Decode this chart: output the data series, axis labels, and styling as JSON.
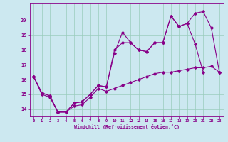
{
  "xlabel": "Windchill (Refroidissement éolien,°C)",
  "bg_color": "#cce8f0",
  "line_color": "#880088",
  "grid_color": "#99ccbb",
  "xlim": [
    -0.5,
    23.5
  ],
  "ylim": [
    13.5,
    21.2
  ],
  "xticks": [
    0,
    1,
    2,
    3,
    4,
    5,
    6,
    7,
    8,
    9,
    10,
    11,
    12,
    13,
    14,
    15,
    16,
    17,
    18,
    19,
    20,
    21,
    22,
    23
  ],
  "yticks": [
    14,
    15,
    16,
    17,
    18,
    19,
    20
  ],
  "series": [
    {
      "x": [
        0,
        1,
        2,
        3,
        4,
        5,
        6,
        7,
        8,
        9,
        10,
        11,
        12,
        13,
        14,
        15,
        16,
        17,
        18,
        19,
        20,
        21,
        22,
        23
      ],
      "y": [
        16.2,
        15.1,
        14.9,
        13.8,
        13.8,
        14.4,
        14.5,
        15.0,
        15.6,
        15.5,
        17.8,
        19.2,
        18.5,
        18.0,
        17.9,
        18.5,
        18.5,
        20.3,
        19.6,
        19.8,
        18.4,
        16.5,
        null,
        null
      ]
    },
    {
      "x": [
        0,
        1,
        2,
        3,
        4,
        5,
        6,
        7,
        8,
        9,
        10,
        11,
        12,
        13,
        14,
        15,
        16,
        17,
        18,
        19,
        20,
        21,
        22,
        23
      ],
      "y": [
        16.2,
        15.1,
        14.9,
        13.8,
        13.8,
        14.4,
        14.5,
        15.0,
        15.6,
        15.5,
        18.0,
        18.5,
        18.5,
        18.0,
        17.9,
        18.5,
        18.5,
        20.3,
        19.6,
        19.8,
        20.5,
        20.6,
        19.5,
        16.5
      ]
    },
    {
      "x": [
        0,
        1,
        2,
        3,
        4,
        5,
        6,
        7,
        8,
        9,
        10,
        11,
        12,
        13,
        14,
        15,
        16,
        17,
        18,
        19,
        20,
        21,
        22,
        23
      ],
      "y": [
        16.2,
        15.0,
        14.8,
        13.8,
        13.8,
        14.2,
        14.3,
        14.8,
        15.4,
        15.2,
        15.4,
        15.6,
        15.8,
        16.0,
        16.2,
        16.4,
        16.5,
        16.5,
        16.6,
        16.7,
        16.8,
        16.8,
        16.9,
        16.5
      ]
    }
  ]
}
